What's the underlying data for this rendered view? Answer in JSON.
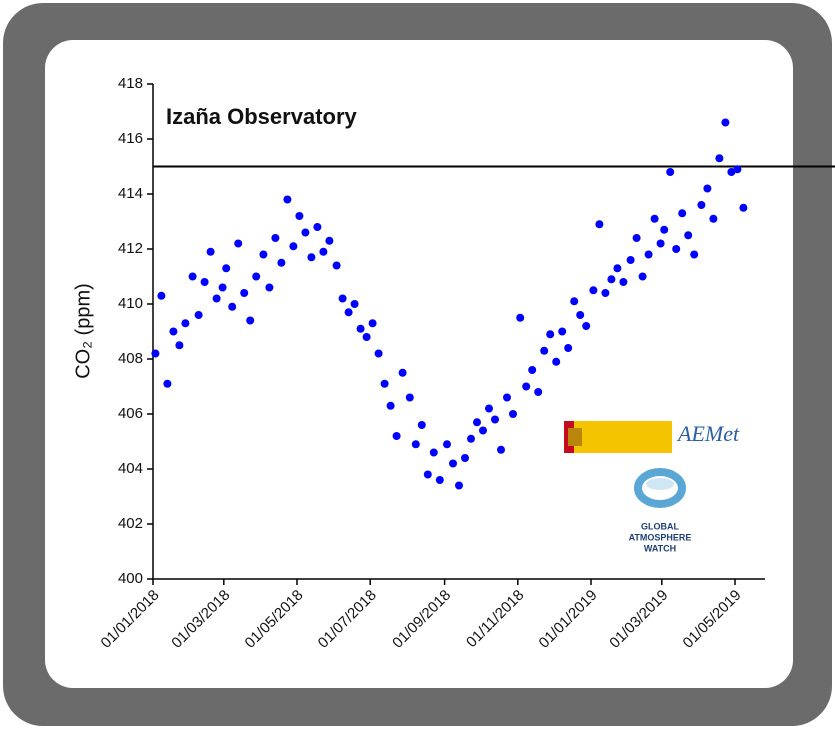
{
  "chart_data": {
    "type": "scatter",
    "title": "Izaña Observatory",
    "y_label": "CO₂ (ppm)",
    "color": "#0000ff",
    "x": [
      "03/01/2018",
      "08/01/2018",
      "13/01/2018",
      "18/01/2018",
      "23/01/2018",
      "28/01/2018",
      "03/02/2018",
      "08/02/2018",
      "13/02/2018",
      "18/02/2018",
      "23/02/2018",
      "28/02/2018",
      "03/03/2018",
      "08/03/2018",
      "13/03/2018",
      "18/03/2018",
      "23/03/2018",
      "28/03/2018",
      "03/04/2018",
      "08/04/2018",
      "13/04/2018",
      "18/04/2018",
      "23/04/2018",
      "28/04/2018",
      "03/05/2018",
      "08/05/2018",
      "13/05/2018",
      "18/05/2018",
      "23/05/2018",
      "28/05/2018",
      "03/06/2018",
      "08/06/2018",
      "13/06/2018",
      "18/06/2018",
      "23/06/2018",
      "28/06/2018",
      "03/07/2018",
      "08/07/2018",
      "13/07/2018",
      "18/07/2018",
      "23/07/2018",
      "28/07/2018",
      "03/08/2018",
      "08/08/2018",
      "13/08/2018",
      "18/08/2018",
      "23/08/2018",
      "28/08/2018",
      "03/09/2018",
      "08/09/2018",
      "13/09/2018",
      "18/09/2018",
      "23/09/2018",
      "28/09/2018",
      "03/10/2018",
      "08/10/2018",
      "13/10/2018",
      "18/10/2018",
      "23/10/2018",
      "28/10/2018",
      "03/11/2018",
      "08/11/2018",
      "13/11/2018",
      "18/11/2018",
      "23/11/2018",
      "28/11/2018",
      "03/12/2018",
      "08/12/2018",
      "13/12/2018",
      "18/12/2018",
      "23/12/2018",
      "28/12/2018",
      "03/01/2019",
      "08/01/2019",
      "13/01/2019",
      "18/01/2019",
      "23/01/2019",
      "28/01/2019",
      "03/02/2019",
      "08/02/2019",
      "13/02/2019",
      "18/02/2019",
      "23/02/2019",
      "28/02/2019",
      "03/03/2019",
      "08/03/2019",
      "13/03/2019",
      "18/03/2019",
      "23/03/2019",
      "28/03/2019",
      "03/04/2019",
      "08/04/2019",
      "13/04/2019",
      "18/04/2019",
      "23/04/2019",
      "28/04/2019",
      "03/05/2019",
      "08/05/2019"
    ],
    "values": [
      408.2,
      410.3,
      407.1,
      409.0,
      408.5,
      409.3,
      411.0,
      409.6,
      410.8,
      411.9,
      410.2,
      410.6,
      411.3,
      409.9,
      412.2,
      410.4,
      409.4,
      411.0,
      411.8,
      410.6,
      412.4,
      411.5,
      413.8,
      412.1,
      413.2,
      412.6,
      411.7,
      412.8,
      411.9,
      412.3,
      411.4,
      410.2,
      409.7,
      410.0,
      409.1,
      408.8,
      409.3,
      408.2,
      407.1,
      406.3,
      405.2,
      407.5,
      406.6,
      404.9,
      405.6,
      403.8,
      404.6,
      403.6,
      404.9,
      404.2,
      403.4,
      404.4,
      405.1,
      405.7,
      405.4,
      406.2,
      405.8,
      404.7,
      406.6,
      406.0,
      409.5,
      407.0,
      407.6,
      406.8,
      408.3,
      408.9,
      407.9,
      409.0,
      408.4,
      410.1,
      409.6,
      409.2,
      410.5,
      412.9,
      410.4,
      410.9,
      411.3,
      410.8,
      411.6,
      412.4,
      411.0,
      411.8,
      413.1,
      412.2,
      412.7,
      414.8,
      412.0,
      413.3,
      412.5,
      411.8,
      413.6,
      414.2,
      413.1,
      415.3,
      416.6,
      414.8,
      414.9,
      413.5
    ],
    "xlim": [
      "01/01/2018",
      "26/05/2019"
    ],
    "xticks": [
      "01/01/2018",
      "01/03/2018",
      "01/05/2018",
      "01/07/2018",
      "01/09/2018",
      "01/11/2018",
      "01/01/2019",
      "01/03/2019",
      "01/05/2019"
    ],
    "ylim": [
      400,
      418
    ],
    "yticks": [
      400,
      402,
      404,
      406,
      408,
      410,
      412,
      414,
      416,
      418
    ],
    "hline": 415,
    "grid": false
  },
  "logos": {
    "aemet": "AEMet",
    "gaw": [
      "GLOBAL",
      "ATMOSPHERE",
      "WATCH"
    ]
  }
}
